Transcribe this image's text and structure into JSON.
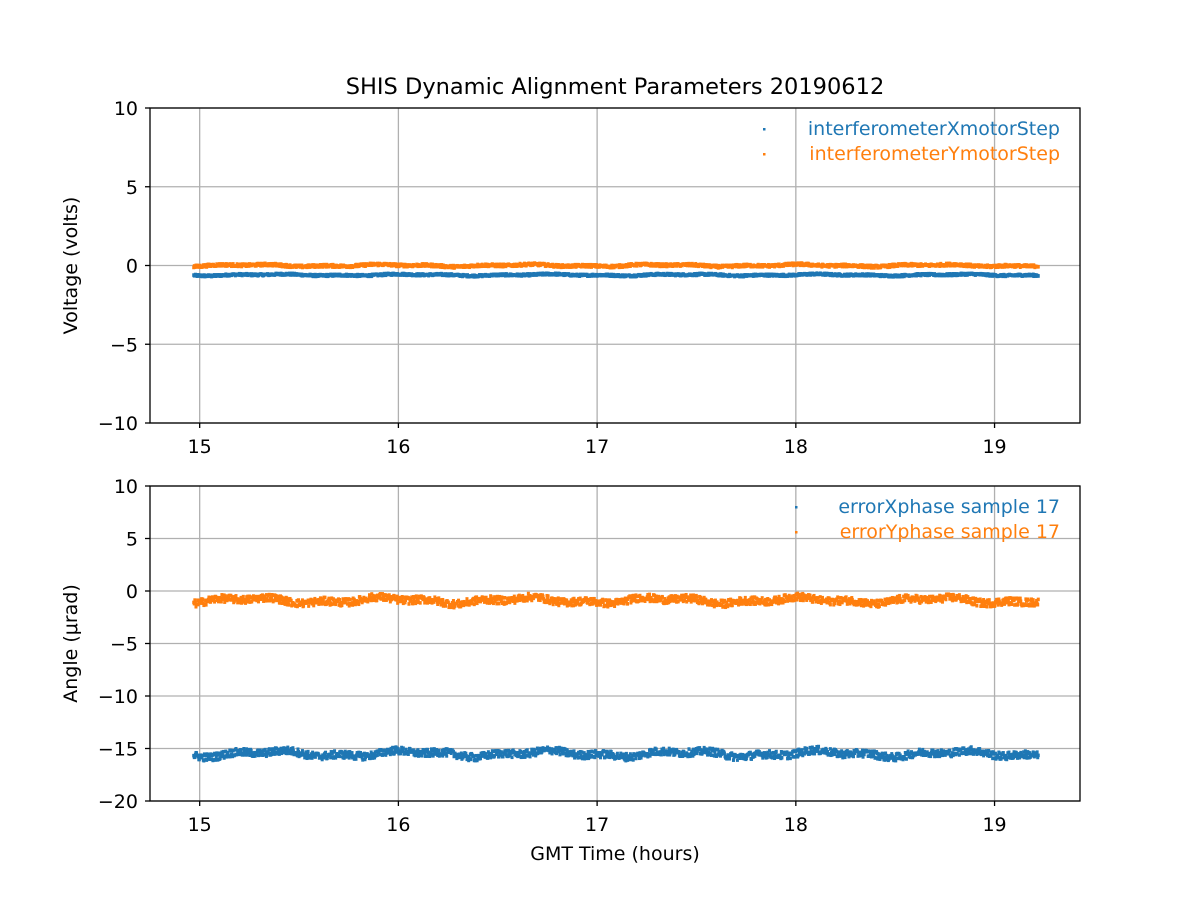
{
  "chart_data": [
    {
      "type": "scatter",
      "title": "SHIS Dynamic Alignment Parameters 20190612",
      "xlabel": "",
      "ylabel": "Voltage (volts)",
      "xlim": [
        14.75,
        19.43
      ],
      "ylim": [
        -10,
        10
      ],
      "xticks": [
        15,
        16,
        17,
        18,
        19
      ],
      "yticks": [
        10,
        5,
        0,
        -5,
        -10
      ],
      "ytick_labels": [
        "10",
        "5",
        "0",
        "−5",
        "−10"
      ],
      "x_range": [
        14.97,
        19.22
      ],
      "grid": true,
      "legend_position": "upper right",
      "series": [
        {
          "name": "interferometerXmotorStep",
          "color": "#1f77b4",
          "mean": -0.6,
          "noise": 0.06
        },
        {
          "name": "interferometerYmotorStep",
          "color": "#ff7f0e",
          "mean": 0.0,
          "noise": 0.08
        }
      ]
    },
    {
      "type": "scatter",
      "title": "",
      "xlabel": "GMT Time (hours)",
      "ylabel": "Angle (μrad)",
      "xlim": [
        14.75,
        19.43
      ],
      "ylim": [
        -20,
        10
      ],
      "xticks": [
        15,
        16,
        17,
        18,
        19
      ],
      "yticks": [
        10,
        5,
        0,
        -5,
        -10,
        -15,
        -20
      ],
      "ytick_labels": [
        "10",
        "5",
        "0",
        "−5",
        "−10",
        "−15",
        "−20"
      ],
      "x_range": [
        14.97,
        19.22
      ],
      "grid": true,
      "legend_position": "upper right",
      "series": [
        {
          "name": "errorXphase sample 17",
          "color": "#1f77b4",
          "mean": -15.5,
          "noise": 0.35
        },
        {
          "name": "errorYphase sample 17",
          "color": "#ff7f0e",
          "mean": -0.9,
          "noise": 0.35
        }
      ]
    }
  ]
}
